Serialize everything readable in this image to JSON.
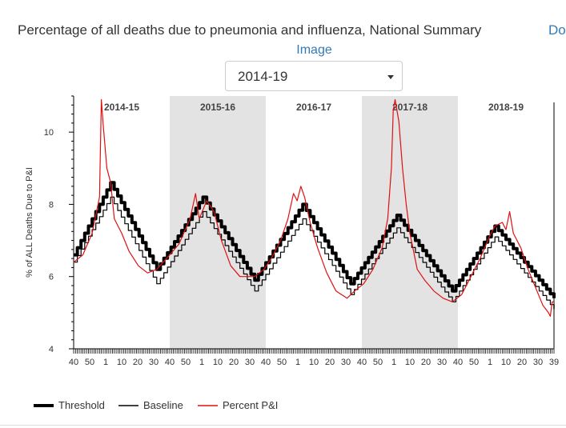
{
  "header": {
    "title": "Percentage of all deaths due to pneumonia and influenza, National Summary",
    "download_link": "Do",
    "image_link": "Image"
  },
  "season_select": {
    "selected": "2014-19"
  },
  "chart_data": {
    "type": "line",
    "title": "",
    "ylabel": "% of ALL Deaths Due to P&I",
    "xlabel": "",
    "ylim": [
      4,
      11
    ],
    "yticks": [
      4,
      6,
      8,
      10
    ],
    "x_weeks_total": 260,
    "x_tick_labels": [
      "40",
      "50",
      "1",
      "10",
      "20",
      "30",
      "40",
      "50",
      "1",
      "10",
      "20",
      "30",
      "40",
      "50",
      "1",
      "10",
      "20",
      "30",
      "40",
      "50",
      "1",
      "10",
      "20",
      "30",
      "40",
      "50",
      "1",
      "10",
      "20",
      "30",
      "39"
    ],
    "seasons": [
      {
        "label": "2014-15",
        "shaded": false
      },
      {
        "label": "2015-16",
        "shaded": true
      },
      {
        "label": "2016-17",
        "shaded": false
      },
      {
        "label": "2017-18",
        "shaded": true
      },
      {
        "label": "2018-19",
        "shaded": false
      }
    ],
    "series": [
      {
        "name": "Threshold",
        "color": "#000000",
        "style": "thick",
        "keypoints": [
          [
            0,
            6.6
          ],
          [
            20,
            8.6
          ],
          [
            45,
            6.2
          ],
          [
            70,
            8.2
          ],
          [
            98,
            5.9
          ],
          [
            124,
            8.0
          ],
          [
            150,
            5.8
          ],
          [
            175,
            7.7
          ],
          [
            205,
            5.6
          ],
          [
            228,
            7.4
          ],
          [
            260,
            5.4
          ]
        ]
      },
      {
        "name": "Baseline",
        "color": "#000000",
        "style": "thin",
        "keypoints": [
          [
            0,
            6.4
          ],
          [
            20,
            8.2
          ],
          [
            45,
            5.8
          ],
          [
            70,
            7.8
          ],
          [
            98,
            5.6
          ],
          [
            124,
            7.6
          ],
          [
            150,
            5.5
          ],
          [
            175,
            7.35
          ],
          [
            205,
            5.3
          ],
          [
            228,
            7.1
          ],
          [
            260,
            5.1
          ]
        ]
      },
      {
        "name": "Percent P&I",
        "color": "#e01010",
        "style": "thin",
        "keypoints": [
          [
            0,
            6.4
          ],
          [
            5,
            6.6
          ],
          [
            10,
            7.2
          ],
          [
            14,
            8.2
          ],
          [
            15,
            10.9
          ],
          [
            16,
            10.2
          ],
          [
            18,
            9.0
          ],
          [
            20,
            8.6
          ],
          [
            22,
            7.6
          ],
          [
            26,
            7.2
          ],
          [
            30,
            6.7
          ],
          [
            35,
            6.3
          ],
          [
            40,
            6.1
          ],
          [
            45,
            6.2
          ],
          [
            52,
            6.6
          ],
          [
            57,
            6.9
          ],
          [
            63,
            7.6
          ],
          [
            66,
            8.3
          ],
          [
            68,
            7.6
          ],
          [
            72,
            8.1
          ],
          [
            76,
            7.8
          ],
          [
            80,
            7.0
          ],
          [
            85,
            6.3
          ],
          [
            90,
            6.0
          ],
          [
            98,
            6.0
          ],
          [
            103,
            6.2
          ],
          [
            107,
            6.5
          ],
          [
            112,
            7.0
          ],
          [
            116,
            7.6
          ],
          [
            119,
            8.3
          ],
          [
            121,
            8.1
          ],
          [
            123,
            8.5
          ],
          [
            125,
            8.2
          ],
          [
            128,
            7.5
          ],
          [
            132,
            6.8
          ],
          [
            137,
            6.1
          ],
          [
            142,
            5.6
          ],
          [
            148,
            5.4
          ],
          [
            152,
            5.6
          ],
          [
            157,
            5.8
          ],
          [
            162,
            6.2
          ],
          [
            167,
            6.8
          ],
          [
            170,
            7.6
          ],
          [
            172,
            9.0
          ],
          [
            173,
            10.6
          ],
          [
            174,
            10.9
          ],
          [
            176,
            10.3
          ],
          [
            178,
            9.0
          ],
          [
            180,
            8.0
          ],
          [
            182,
            7.2
          ],
          [
            184,
            6.7
          ],
          [
            186,
            6.2
          ],
          [
            190,
            5.9
          ],
          [
            195,
            5.6
          ],
          [
            200,
            5.4
          ],
          [
            205,
            5.3
          ],
          [
            210,
            5.5
          ],
          [
            215,
            6.0
          ],
          [
            220,
            6.5
          ],
          [
            225,
            7.1
          ],
          [
            228,
            7.4
          ],
          [
            232,
            7.5
          ],
          [
            234,
            7.3
          ],
          [
            236,
            7.8
          ],
          [
            238,
            7.2
          ],
          [
            242,
            6.8
          ],
          [
            246,
            6.2
          ],
          [
            250,
            5.7
          ],
          [
            254,
            5.2
          ],
          [
            257,
            5.0
          ],
          [
            258,
            4.9
          ],
          [
            259,
            5.3
          ],
          [
            260,
            5.3
          ]
        ]
      }
    ],
    "legend": {
      "position": "bottom-left"
    }
  }
}
